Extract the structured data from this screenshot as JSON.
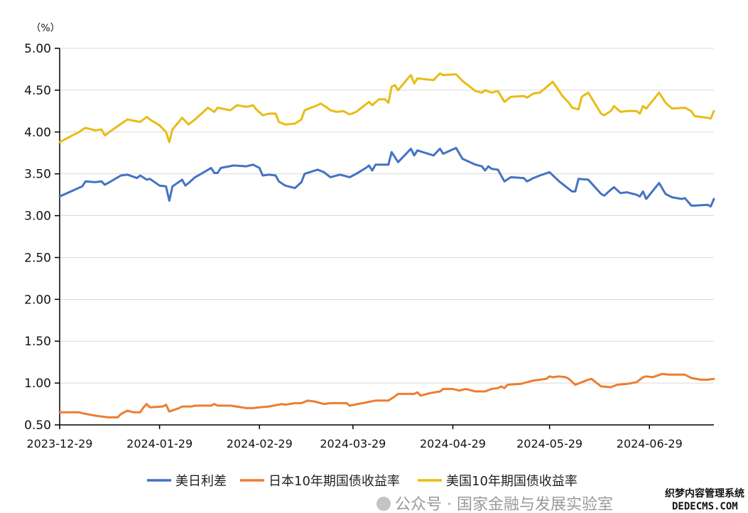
{
  "chart_data": {
    "type": "line",
    "unit_label": "（%）",
    "x_unit": "days since 2023-12-29",
    "xlim": [
      0,
      203
    ],
    "ylim": [
      0.5,
      5.0
    ],
    "yticks": [
      "0.50",
      "1.00",
      "1.50",
      "2.00",
      "2.50",
      "3.00",
      "3.50",
      "4.00",
      "4.50",
      "5.00"
    ],
    "xticks": [
      {
        "day": 0,
        "label": "2023-12-29"
      },
      {
        "day": 31,
        "label": "2024-01-29"
      },
      {
        "day": 62,
        "label": "2024-02-29"
      },
      {
        "day": 91,
        "label": "2024-03-29"
      },
      {
        "day": 122,
        "label": "2024-04-29"
      },
      {
        "day": 152,
        "label": "2024-05-29"
      },
      {
        "day": 183,
        "label": "2024-06-29"
      }
    ],
    "grid": true,
    "legend_position": "bottom",
    "series": [
      {
        "name": "美日利差",
        "color": "#4472c4",
        "points": [
          [
            0,
            3.23
          ],
          [
            7,
            3.35
          ],
          [
            8,
            3.41
          ],
          [
            11,
            3.4
          ],
          [
            13,
            3.41
          ],
          [
            14,
            3.37
          ],
          [
            15,
            3.39
          ],
          [
            19,
            3.48
          ],
          [
            21,
            3.49
          ],
          [
            24,
            3.45
          ],
          [
            25,
            3.48
          ],
          [
            27,
            3.43
          ],
          [
            28,
            3.44
          ],
          [
            31,
            3.36
          ],
          [
            33,
            3.35
          ],
          [
            34,
            3.18
          ],
          [
            35,
            3.35
          ],
          [
            38,
            3.43
          ],
          [
            39,
            3.36
          ],
          [
            40,
            3.39
          ],
          [
            42,
            3.46
          ],
          [
            43,
            3.48
          ],
          [
            47,
            3.57
          ],
          [
            48,
            3.51
          ],
          [
            49,
            3.51
          ],
          [
            50,
            3.57
          ],
          [
            54,
            3.6
          ],
          [
            58,
            3.59
          ],
          [
            60,
            3.61
          ],
          [
            62,
            3.57
          ],
          [
            63,
            3.48
          ],
          [
            65,
            3.49
          ],
          [
            67,
            3.48
          ],
          [
            68,
            3.41
          ],
          [
            70,
            3.36
          ],
          [
            73,
            3.33
          ],
          [
            75,
            3.4
          ],
          [
            76,
            3.5
          ],
          [
            80,
            3.55
          ],
          [
            82,
            3.52
          ],
          [
            84,
            3.46
          ],
          [
            87,
            3.49
          ],
          [
            90,
            3.46
          ],
          [
            92,
            3.5
          ],
          [
            95,
            3.57
          ],
          [
            96,
            3.6
          ],
          [
            97,
            3.54
          ],
          [
            98,
            3.61
          ],
          [
            102,
            3.61
          ],
          [
            103,
            3.76
          ],
          [
            105,
            3.64
          ],
          [
            109,
            3.8
          ],
          [
            110,
            3.72
          ],
          [
            111,
            3.78
          ],
          [
            116,
            3.72
          ],
          [
            118,
            3.8
          ],
          [
            119,
            3.74
          ],
          [
            123,
            3.81
          ],
          [
            125,
            3.68
          ],
          [
            129,
            3.61
          ],
          [
            131,
            3.59
          ],
          [
            132,
            3.54
          ],
          [
            133,
            3.59
          ],
          [
            134,
            3.56
          ],
          [
            136,
            3.55
          ],
          [
            138,
            3.41
          ],
          [
            140,
            3.46
          ],
          [
            144,
            3.45
          ],
          [
            145,
            3.41
          ],
          [
            147,
            3.45
          ],
          [
            149,
            3.48
          ],
          [
            152,
            3.52
          ],
          [
            155,
            3.41
          ],
          [
            158,
            3.32
          ],
          [
            159,
            3.29
          ],
          [
            160,
            3.29
          ],
          [
            161,
            3.44
          ],
          [
            164,
            3.43
          ],
          [
            168,
            3.26
          ],
          [
            169,
            3.24
          ],
          [
            171,
            3.31
          ],
          [
            172,
            3.34
          ],
          [
            174,
            3.27
          ],
          [
            176,
            3.28
          ],
          [
            179,
            3.25
          ],
          [
            180,
            3.23
          ],
          [
            181,
            3.29
          ],
          [
            182,
            3.2
          ],
          [
            186,
            3.39
          ],
          [
            188,
            3.26
          ],
          [
            190,
            3.22
          ],
          [
            193,
            3.2
          ],
          [
            194,
            3.21
          ],
          [
            196,
            3.12
          ],
          [
            197,
            3.12
          ],
          [
            201,
            3.13
          ],
          [
            202,
            3.11
          ],
          [
            203,
            3.2
          ]
        ]
      },
      {
        "name": "日本10年期国债收益率",
        "color": "#ed7d31",
        "points": [
          [
            0,
            0.65
          ],
          [
            6,
            0.65
          ],
          [
            7,
            0.64
          ],
          [
            11,
            0.61
          ],
          [
            13,
            0.6
          ],
          [
            15,
            0.59
          ],
          [
            18,
            0.59
          ],
          [
            19,
            0.63
          ],
          [
            21,
            0.67
          ],
          [
            23,
            0.65
          ],
          [
            25,
            0.65
          ],
          [
            26,
            0.71
          ],
          [
            27,
            0.75
          ],
          [
            28,
            0.71
          ],
          [
            32,
            0.72
          ],
          [
            33,
            0.74
          ],
          [
            34,
            0.66
          ],
          [
            37,
            0.7
          ],
          [
            38,
            0.72
          ],
          [
            41,
            0.72
          ],
          [
            42,
            0.73
          ],
          [
            47,
            0.73
          ],
          [
            48,
            0.75
          ],
          [
            49,
            0.73
          ],
          [
            53,
            0.73
          ],
          [
            58,
            0.7
          ],
          [
            60,
            0.7
          ],
          [
            62,
            0.71
          ],
          [
            65,
            0.72
          ],
          [
            69,
            0.75
          ],
          [
            70,
            0.74
          ],
          [
            73,
            0.76
          ],
          [
            75,
            0.76
          ],
          [
            77,
            0.79
          ],
          [
            79,
            0.78
          ],
          [
            82,
            0.75
          ],
          [
            84,
            0.76
          ],
          [
            89,
            0.76
          ],
          [
            90,
            0.73
          ],
          [
            94,
            0.76
          ],
          [
            98,
            0.79
          ],
          [
            102,
            0.79
          ],
          [
            104,
            0.84
          ],
          [
            105,
            0.87
          ],
          [
            110,
            0.87
          ],
          [
            111,
            0.89
          ],
          [
            112,
            0.85
          ],
          [
            115,
            0.88
          ],
          [
            118,
            0.9
          ],
          [
            119,
            0.93
          ],
          [
            122,
            0.93
          ],
          [
            124,
            0.91
          ],
          [
            126,
            0.93
          ],
          [
            129,
            0.9
          ],
          [
            132,
            0.9
          ],
          [
            134,
            0.93
          ],
          [
            136,
            0.94
          ],
          [
            137,
            0.96
          ],
          [
            138,
            0.94
          ],
          [
            139,
            0.98
          ],
          [
            143,
            0.99
          ],
          [
            145,
            1.01
          ],
          [
            147,
            1.03
          ],
          [
            149,
            1.04
          ],
          [
            151,
            1.05
          ],
          [
            152,
            1.08
          ],
          [
            153,
            1.07
          ],
          [
            155,
            1.08
          ],
          [
            157,
            1.07
          ],
          [
            158,
            1.05
          ],
          [
            160,
            0.98
          ],
          [
            164,
            1.04
          ],
          [
            165,
            1.05
          ],
          [
            166,
            1.02
          ],
          [
            168,
            0.96
          ],
          [
            171,
            0.95
          ],
          [
            173,
            0.98
          ],
          [
            176,
            0.99
          ],
          [
            179,
            1.01
          ],
          [
            181,
            1.07
          ],
          [
            182,
            1.08
          ],
          [
            184,
            1.07
          ],
          [
            187,
            1.11
          ],
          [
            189,
            1.1
          ],
          [
            191,
            1.1
          ],
          [
            194,
            1.1
          ],
          [
            196,
            1.06
          ],
          [
            199,
            1.04
          ],
          [
            201,
            1.04
          ],
          [
            203,
            1.05
          ]
        ]
      },
      {
        "name": "美国10年期国债收益率",
        "color": "#e8bc14",
        "points": [
          [
            0,
            3.88
          ],
          [
            6,
            4.0
          ],
          [
            8,
            4.05
          ],
          [
            11,
            4.02
          ],
          [
            13,
            4.03
          ],
          [
            14,
            3.96
          ],
          [
            18,
            4.07
          ],
          [
            21,
            4.15
          ],
          [
            25,
            4.12
          ],
          [
            27,
            4.18
          ],
          [
            28,
            4.15
          ],
          [
            31,
            4.08
          ],
          [
            33,
            4.0
          ],
          [
            34,
            3.88
          ],
          [
            35,
            4.03
          ],
          [
            38,
            4.17
          ],
          [
            40,
            4.09
          ],
          [
            42,
            4.15
          ],
          [
            46,
            4.29
          ],
          [
            48,
            4.24
          ],
          [
            49,
            4.29
          ],
          [
            53,
            4.26
          ],
          [
            55,
            4.32
          ],
          [
            58,
            4.3
          ],
          [
            60,
            4.32
          ],
          [
            61,
            4.27
          ],
          [
            63,
            4.2
          ],
          [
            65,
            4.22
          ],
          [
            67,
            4.22
          ],
          [
            68,
            4.12
          ],
          [
            70,
            4.09
          ],
          [
            73,
            4.1
          ],
          [
            75,
            4.15
          ],
          [
            76,
            4.26
          ],
          [
            80,
            4.32
          ],
          [
            81,
            4.34
          ],
          [
            83,
            4.29
          ],
          [
            84,
            4.26
          ],
          [
            86,
            4.24
          ],
          [
            88,
            4.25
          ],
          [
            90,
            4.21
          ],
          [
            92,
            4.24
          ],
          [
            95,
            4.33
          ],
          [
            96,
            4.36
          ],
          [
            97,
            4.32
          ],
          [
            99,
            4.39
          ],
          [
            101,
            4.39
          ],
          [
            102,
            4.35
          ],
          [
            103,
            4.54
          ],
          [
            104,
            4.56
          ],
          [
            105,
            4.5
          ],
          [
            108,
            4.64
          ],
          [
            109,
            4.68
          ],
          [
            110,
            4.58
          ],
          [
            111,
            4.64
          ],
          [
            116,
            4.62
          ],
          [
            118,
            4.7
          ],
          [
            119,
            4.68
          ],
          [
            123,
            4.69
          ],
          [
            125,
            4.61
          ],
          [
            129,
            4.49
          ],
          [
            131,
            4.47
          ],
          [
            132,
            4.5
          ],
          [
            134,
            4.47
          ],
          [
            136,
            4.49
          ],
          [
            138,
            4.36
          ],
          [
            140,
            4.42
          ],
          [
            144,
            4.43
          ],
          [
            145,
            4.41
          ],
          [
            147,
            4.46
          ],
          [
            149,
            4.47
          ],
          [
            153,
            4.6
          ],
          [
            156,
            4.43
          ],
          [
            158,
            4.35
          ],
          [
            159,
            4.29
          ],
          [
            161,
            4.27
          ],
          [
            162,
            4.42
          ],
          [
            164,
            4.47
          ],
          [
            168,
            4.22
          ],
          [
            169,
            4.2
          ],
          [
            171,
            4.25
          ],
          [
            172,
            4.31
          ],
          [
            174,
            4.24
          ],
          [
            176,
            4.25
          ],
          [
            179,
            4.25
          ],
          [
            180,
            4.22
          ],
          [
            181,
            4.31
          ],
          [
            182,
            4.28
          ],
          [
            186,
            4.47
          ],
          [
            188,
            4.35
          ],
          [
            190,
            4.28
          ],
          [
            194,
            4.29
          ],
          [
            196,
            4.25
          ],
          [
            197,
            4.19
          ],
          [
            199,
            4.18
          ],
          [
            201,
            4.17
          ],
          [
            202,
            4.16
          ],
          [
            203,
            4.25
          ]
        ]
      }
    ]
  },
  "watermark": {
    "text": "公众号 · 国家金融与发展实验室",
    "cms_line1": "织梦内容管理系统",
    "cms_line2": "DEDECMS.COM"
  }
}
